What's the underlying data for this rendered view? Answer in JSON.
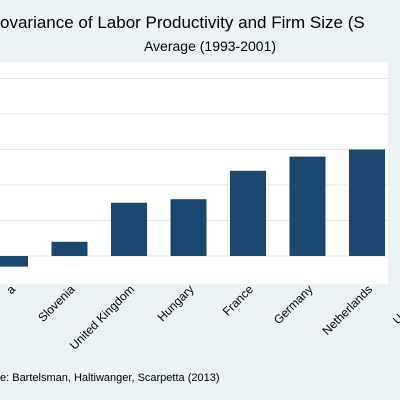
{
  "chart_data": {
    "type": "bar",
    "title": "ovariance of Labor Productivity and Firm Size (S",
    "subtitle": "Average (1993-2001)",
    "source": "e: Bartelsman, Haltiwanger, Scarpetta (2013)",
    "categories": [
      "a",
      "Slovenia",
      "United Kingdom",
      "Hungary",
      "France",
      "Germany",
      "Netherlands",
      "United St"
    ],
    "values": [
      -0.03,
      0.04,
      0.15,
      0.16,
      0.24,
      0.28,
      0.3,
      null
    ],
    "color": "#1a476f",
    "ylim": [
      -0.05,
      0.55
    ],
    "yticks": [
      0,
      0.1,
      0.2,
      0.3,
      0.4,
      0.5
    ],
    "grid": true
  }
}
